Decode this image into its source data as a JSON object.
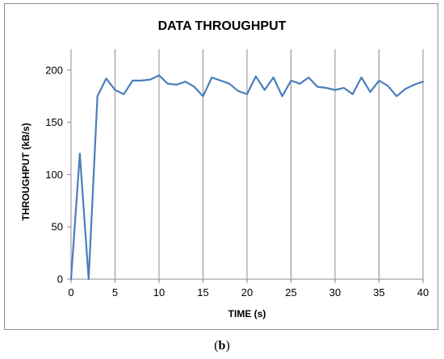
{
  "chart_data": {
    "type": "line",
    "title": "DATA THROUGHPUT",
    "xlabel": "TIME (s)",
    "ylabel": "THROUGHPUT (kB/s)",
    "xlim": [
      0,
      40
    ],
    "ylim": [
      0,
      220
    ],
    "xticks": [
      0,
      5,
      10,
      15,
      20,
      25,
      30,
      35,
      40
    ],
    "yticks": [
      0,
      50,
      100,
      150,
      200
    ],
    "grid": "vertical",
    "legend": "none",
    "line_color": "#4a7ebb",
    "series": [
      {
        "x": [
          0,
          1,
          2,
          3,
          4,
          5,
          6,
          7,
          8,
          9,
          10,
          11,
          12,
          13,
          14,
          15,
          16,
          17,
          18,
          19,
          20,
          21,
          22,
          23,
          24,
          25,
          26,
          27,
          28,
          29,
          30,
          31,
          32,
          33,
          34,
          35,
          36,
          37,
          38,
          39,
          40
        ],
        "values": [
          0,
          120,
          0,
          175,
          192,
          181,
          177,
          190,
          190,
          191,
          195,
          187,
          186,
          189,
          184,
          175,
          193,
          190,
          187,
          180,
          177,
          194,
          181,
          193,
          175,
          190,
          187,
          193,
          184,
          183,
          181,
          183,
          177,
          193,
          179,
          190,
          185,
          175,
          182,
          186,
          189
        ]
      }
    ]
  },
  "caption": {
    "open": "(",
    "label": "b",
    "close": ")"
  }
}
